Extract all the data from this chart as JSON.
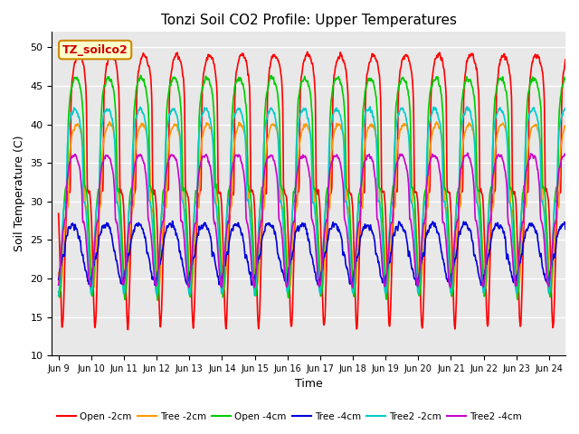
{
  "title": "Tonzi Soil CO2 Profile: Upper Temperatures",
  "xlabel": "Time",
  "ylabel": "Soil Temperature (C)",
  "ylim": [
    10,
    52
  ],
  "x_tick_labels": [
    "Jun 9",
    "Jun 10",
    "Jun 11",
    "Jun 12",
    "Jun 13",
    "Jun 14",
    "Jun 15",
    "Jun 16",
    "Jun 17",
    "Jun 18",
    "Jun 19",
    "Jun 20",
    "Jun 21",
    "Jun 22",
    "Jun 23",
    "Jun 24"
  ],
  "annotation_text": "TZ_soilco2",
  "annotation_box_color": "#ffffcc",
  "annotation_box_edge": "#cc8800",
  "series": [
    {
      "name": "Open -2cm",
      "color": "#ff0000",
      "lw": 1.2,
      "trough": 13.5,
      "peak": 49.0,
      "phase": 0.0,
      "sharpness": 6.0,
      "noise": 0.4
    },
    {
      "name": "Tree -2cm",
      "color": "#ff9900",
      "lw": 1.2,
      "trough": 18.5,
      "peak": 40.0,
      "phase": 0.06,
      "sharpness": 3.5,
      "noise": 0.3
    },
    {
      "name": "Open -4cm",
      "color": "#00cc00",
      "lw": 1.2,
      "trough": 17.5,
      "peak": 46.0,
      "phase": 0.09,
      "sharpness": 4.5,
      "noise": 0.4
    },
    {
      "name": "Tree -4cm",
      "color": "#0000dd",
      "lw": 1.2,
      "trough": 19.5,
      "peak": 27.0,
      "phase": 0.18,
      "sharpness": 2.0,
      "noise": 0.5
    },
    {
      "name": "Tree2 -2cm",
      "color": "#00cccc",
      "lw": 1.2,
      "trough": 18.0,
      "peak": 42.0,
      "phase": 0.12,
      "sharpness": 3.8,
      "noise": 0.3
    },
    {
      "name": "Tree2 -4cm",
      "color": "#cc00cc",
      "lw": 1.2,
      "trough": 19.0,
      "peak": 36.0,
      "phase": 0.14,
      "sharpness": 3.0,
      "noise": 0.3
    }
  ],
  "bg_color": "#e8e8e8",
  "grid_color": "#ffffff",
  "n_days": 15.5,
  "n_points": 3000
}
